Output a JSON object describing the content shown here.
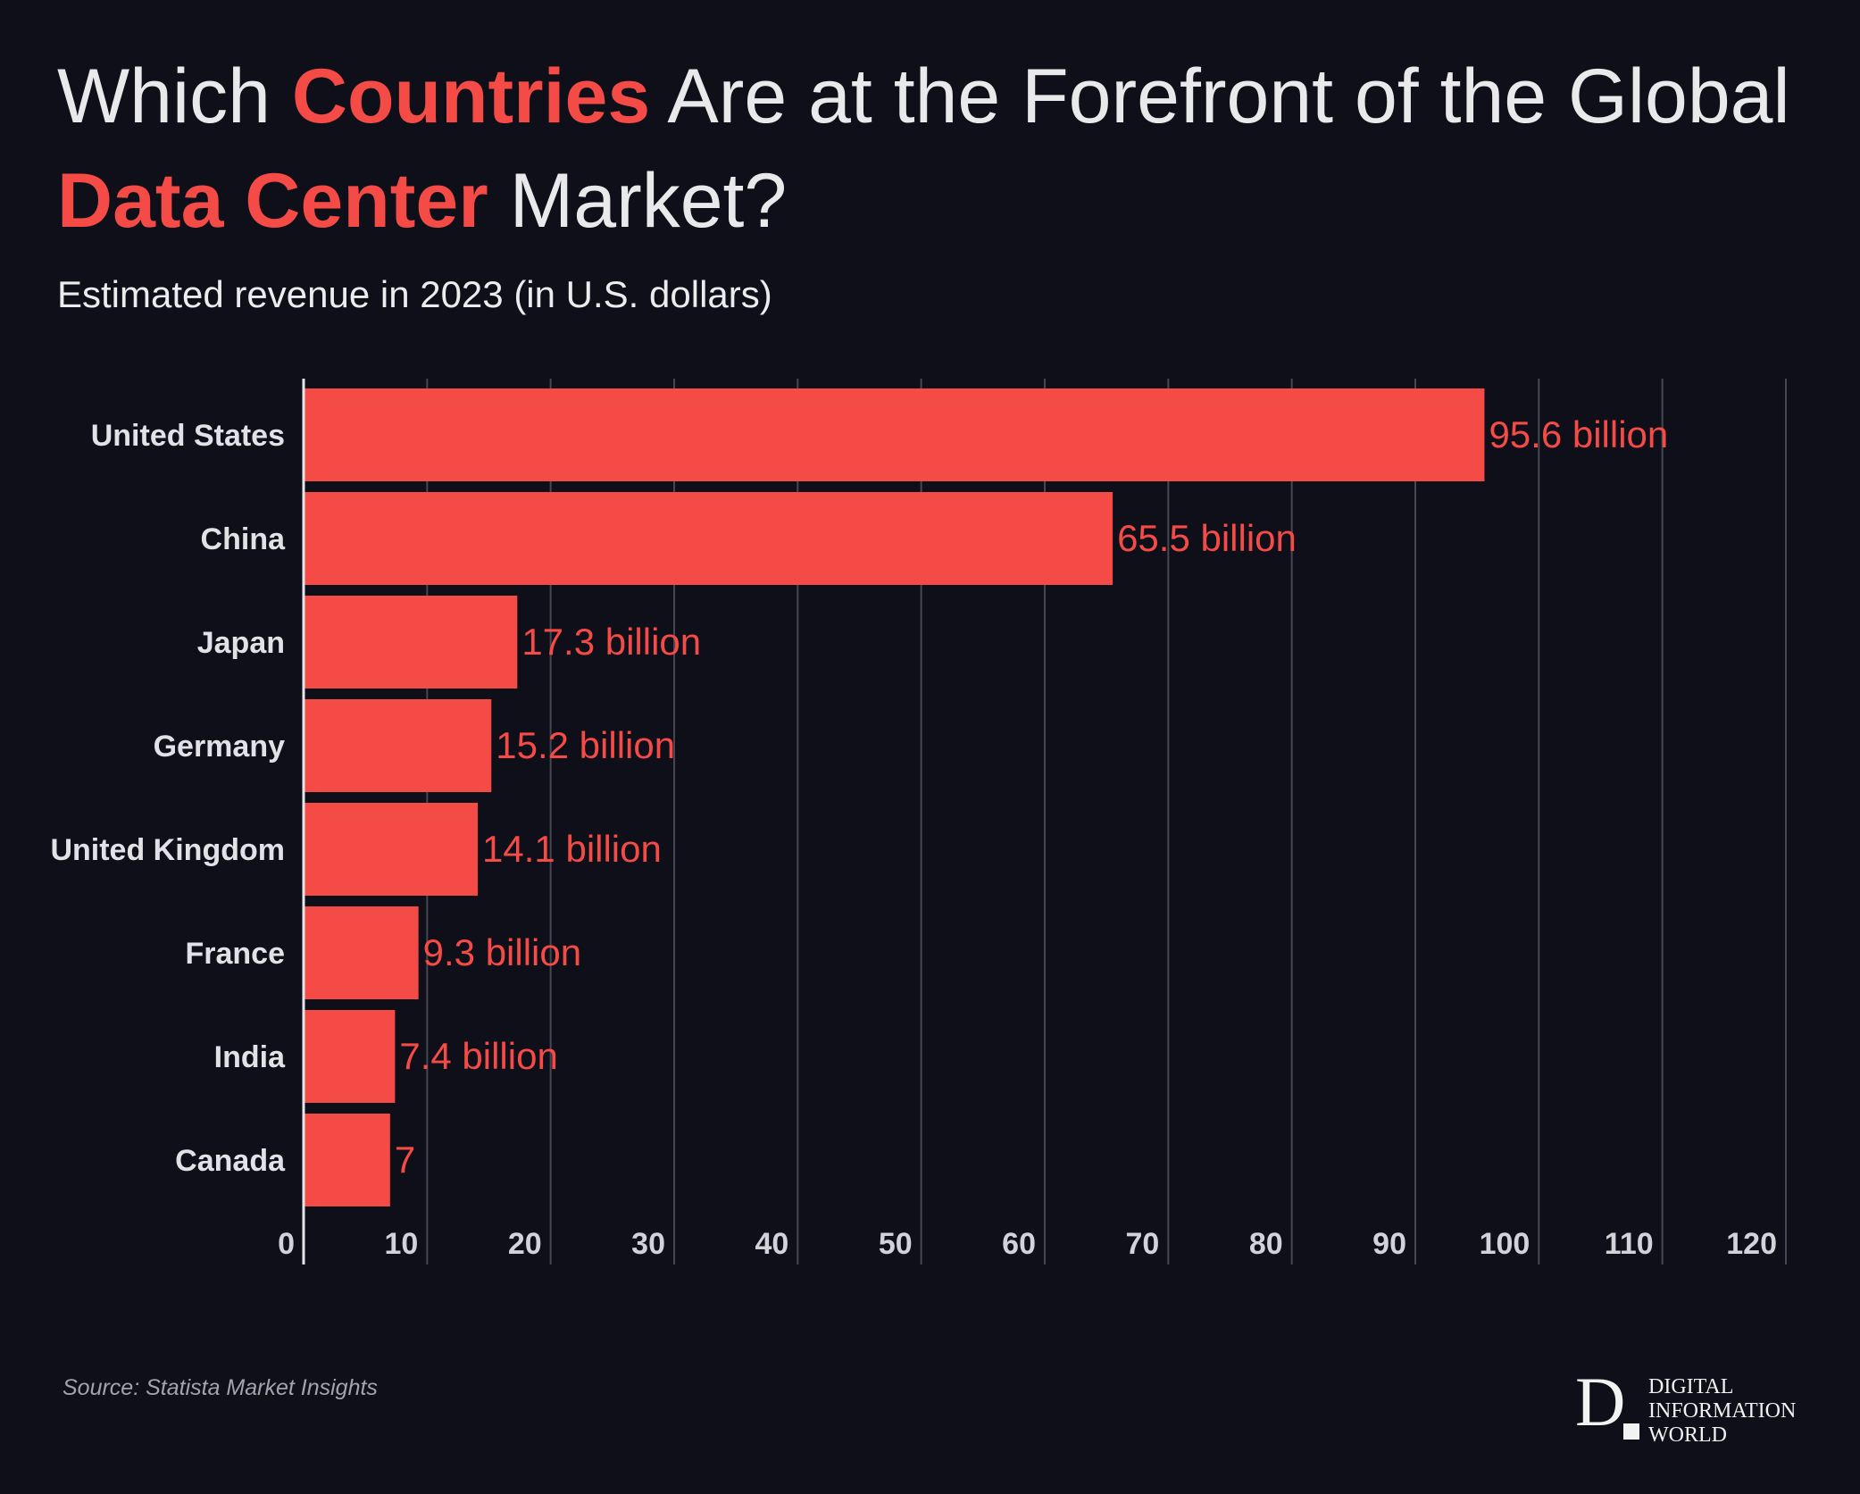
{
  "header": {
    "title_part1": "Which ",
    "title_highlight1": "Countries",
    "title_part2": " Are at the Forefront of the Global ",
    "title_highlight2": "Data Center",
    "title_part3": " Market?",
    "subtitle": "Estimated revenue in 2023 (in U.S. dollars)"
  },
  "chart_data": {
    "type": "bar",
    "orientation": "horizontal",
    "title": "Which Countries Are at the Forefront of the Global Data Center Market?",
    "subtitle": "Estimated revenue in 2023 (in U.S. dollars)",
    "categories": [
      "United States",
      "China",
      "Japan",
      "Germany",
      "United Kingdom",
      "France",
      "India",
      "Canada"
    ],
    "values": [
      95.6,
      65.5,
      17.3,
      15.2,
      14.1,
      9.3,
      7.4,
      7
    ],
    "value_labels": [
      "95.6 billion",
      "65.5 billion",
      "17.3 billion",
      "15.2 billion",
      "14.1 billion",
      "9.3 billion",
      "7.4 billion",
      "7"
    ],
    "xlim": [
      0,
      120
    ],
    "xticks": [
      0,
      10,
      20,
      30,
      40,
      50,
      60,
      70,
      80,
      90,
      100,
      110,
      120
    ],
    "xlabel": "",
    "ylabel": "",
    "grid": true,
    "bar_color": "#f54b47",
    "label_color": "#f54b47",
    "category_label_color": "#e2e2e6",
    "tick_label_color": "#d2d2d8",
    "grid_color": "#474753"
  },
  "footer": {
    "source": "Source: Statista Market Insights",
    "logo_letter": "D",
    "logo_line1": "DIGITAL",
    "logo_line2": "INFORMATION",
    "logo_line3": "WORLD"
  }
}
